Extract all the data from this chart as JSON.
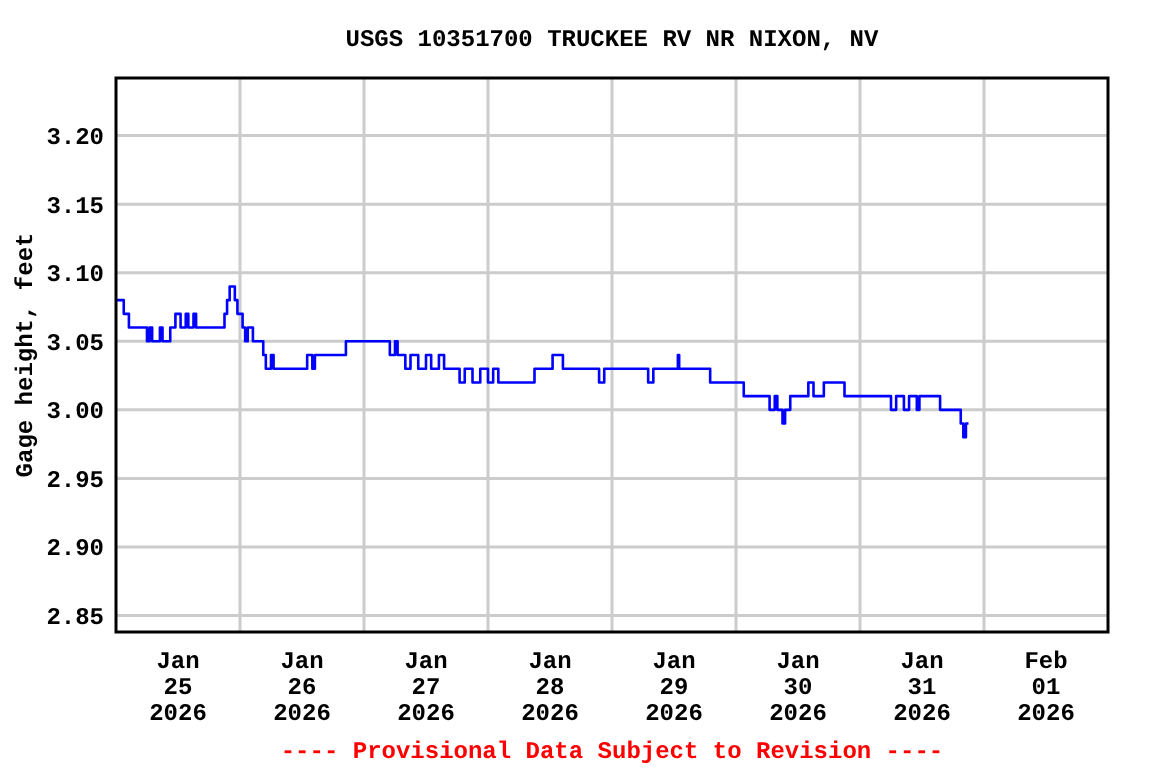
{
  "chart_data": {
    "type": "step",
    "title": "USGS 10351700 TRUCKEE RV NR NIXON, NV",
    "ylabel": "Gage height, feet",
    "annotations": [
      "---- Provisional Data Subject to Revision ----"
    ],
    "xlim": [
      "2026-01-25T00:00",
      "2026-02-02T00:00"
    ],
    "xticks": [
      {
        "value": "2026-01-25T12:00",
        "label": "Jan\n25\n2026"
      },
      {
        "value": "2026-01-26T00:00",
        "label": null
      },
      {
        "value": "2026-01-26T12:00",
        "label": "Jan\n26\n2026"
      },
      {
        "value": "2026-01-27T00:00",
        "label": null
      },
      {
        "value": "2026-01-27T12:00",
        "label": "Jan\n27\n2026"
      },
      {
        "value": "2026-01-28T00:00",
        "label": null
      },
      {
        "value": "2026-01-28T12:00",
        "label": "Jan\n28\n2026"
      },
      {
        "value": "2026-01-29T00:00",
        "label": null
      },
      {
        "value": "2026-01-29T12:00",
        "label": "Jan\n29\n2026"
      },
      {
        "value": "2026-01-30T00:00",
        "label": null
      },
      {
        "value": "2026-01-30T12:00",
        "label": "Jan\n30\n2026"
      },
      {
        "value": "2026-01-31T00:00",
        "label": null
      },
      {
        "value": "2026-01-31T12:00",
        "label": "Jan\n31\n2026"
      },
      {
        "value": "2026-02-01T00:00",
        "label": null
      },
      {
        "value": "2026-02-01T12:00",
        "label": "Feb\n01\n2026"
      }
    ],
    "ylim": [
      2.838,
      3.242
    ],
    "yticks": [
      {
        "value": 2.85,
        "label": "2.85"
      },
      {
        "value": 2.9,
        "label": "2.90"
      },
      {
        "value": 2.95,
        "label": "2.95"
      },
      {
        "value": 3.0,
        "label": "3.00"
      },
      {
        "value": 3.05,
        "label": "3.05"
      },
      {
        "value": 3.1,
        "label": "3.10"
      },
      {
        "value": 3.15,
        "label": "3.15"
      },
      {
        "value": 3.2,
        "label": "3.20"
      }
    ],
    "grid": true,
    "series": [
      {
        "color": "#0000ff",
        "x": [
          "2026-01-25T00:00",
          "2026-01-25T01:30",
          "2026-01-25T02:30",
          "2026-01-25T06:00",
          "2026-01-25T06:30",
          "2026-01-25T07:00",
          "2026-01-25T08:30",
          "2026-01-25T09:00",
          "2026-01-25T10:30",
          "2026-01-25T11:30",
          "2026-01-25T12:30",
          "2026-01-25T13:30",
          "2026-01-25T14:00",
          "2026-01-25T15:00",
          "2026-01-25T15:30",
          "2026-01-25T21:00",
          "2026-01-25T21:30",
          "2026-01-25T22:00",
          "2026-01-25T23:00",
          "2026-01-25T23:30",
          "2026-01-26T00:30",
          "2026-01-26T01:00",
          "2026-01-26T01:30",
          "2026-01-26T02:30",
          "2026-01-26T04:30",
          "2026-01-26T05:00",
          "2026-01-26T06:00",
          "2026-01-26T06:30",
          "2026-01-26T13:00",
          "2026-01-26T14:00",
          "2026-01-26T14:30",
          "2026-01-26T20:30",
          "2026-01-27T05:00",
          "2026-01-27T06:00",
          "2026-01-27T06:30",
          "2026-01-27T08:00",
          "2026-01-27T09:00",
          "2026-01-27T10:30",
          "2026-01-27T12:00",
          "2026-01-27T13:00",
          "2026-01-27T14:30",
          "2026-01-27T15:30",
          "2026-01-27T18:30",
          "2026-01-27T19:30",
          "2026-01-27T21:00",
          "2026-01-27T22:30",
          "2026-01-28T00:00",
          "2026-01-28T01:00",
          "2026-01-28T02:00",
          "2026-01-28T09:00",
          "2026-01-28T12:30",
          "2026-01-28T14:30",
          "2026-01-28T21:30",
          "2026-01-28T22:30",
          "2026-01-29T07:00",
          "2026-01-29T08:00",
          "2026-01-29T12:45",
          "2026-01-29T13:00",
          "2026-01-29T19:00",
          "2026-01-30T01:30",
          "2026-01-30T06:30",
          "2026-01-30T07:30",
          "2026-01-30T08:00",
          "2026-01-30T09:00",
          "2026-01-30T09:30",
          "2026-01-30T10:30",
          "2026-01-30T14:00",
          "2026-01-30T15:00",
          "2026-01-30T17:00",
          "2026-01-30T21:00",
          "2026-01-31T06:00",
          "2026-01-31T07:00",
          "2026-01-31T08:30",
          "2026-01-31T09:30",
          "2026-01-31T11:00",
          "2026-01-31T11:30",
          "2026-01-31T15:30",
          "2026-01-31T19:30",
          "2026-01-31T20:00",
          "2026-01-31T20:30",
          "2026-01-31T21:00"
        ],
        "values": [
          3.08,
          3.07,
          3.06,
          3.05,
          3.06,
          3.05,
          3.06,
          3.05,
          3.06,
          3.07,
          3.06,
          3.07,
          3.06,
          3.07,
          3.06,
          3.07,
          3.08,
          3.09,
          3.08,
          3.07,
          3.06,
          3.05,
          3.06,
          3.05,
          3.04,
          3.03,
          3.04,
          3.03,
          3.04,
          3.03,
          3.04,
          3.05,
          3.04,
          3.05,
          3.04,
          3.03,
          3.04,
          3.03,
          3.04,
          3.03,
          3.04,
          3.03,
          3.02,
          3.03,
          3.02,
          3.03,
          3.02,
          3.03,
          3.02,
          3.03,
          3.04,
          3.03,
          3.02,
          3.03,
          3.02,
          3.03,
          3.04,
          3.03,
          3.02,
          3.01,
          3.0,
          3.01,
          3.0,
          2.99,
          3.0,
          3.01,
          3.02,
          3.01,
          3.02,
          3.01,
          3.0,
          3.01,
          3.0,
          3.01,
          3.0,
          3.01,
          3.0,
          2.99,
          2.98,
          2.99,
          2.99
        ]
      }
    ]
  }
}
